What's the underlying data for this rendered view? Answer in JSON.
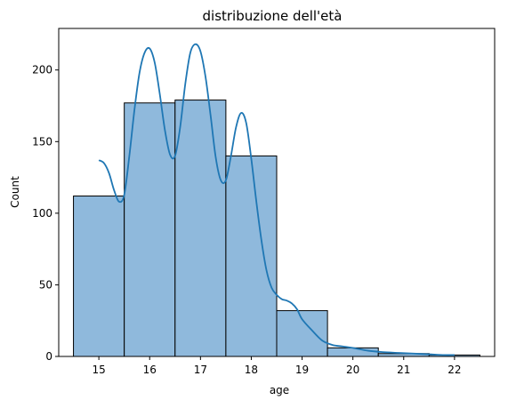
{
  "chart_data": {
    "type": "bar",
    "title": "distribuzione dell'età",
    "xlabel": "age",
    "ylabel": "Count",
    "categories": [
      "15",
      "16",
      "17",
      "18",
      "19",
      "20",
      "21",
      "22"
    ],
    "x": [
      15,
      16,
      17,
      18,
      19,
      20,
      21,
      22
    ],
    "values": [
      112,
      177,
      179,
      140,
      32,
      6,
      2,
      1
    ],
    "xlim": [
      14.21,
      22.79
    ],
    "ylim": [
      0,
      229
    ],
    "xticks": [
      15,
      16,
      17,
      18,
      19,
      20,
      21,
      22
    ],
    "yticks": [
      0,
      50,
      100,
      150,
      200
    ],
    "grid": false,
    "legend": "none",
    "kde": {
      "x": [
        15.0,
        15.1,
        15.2,
        15.3,
        15.4,
        15.5,
        15.6,
        15.7,
        15.8,
        15.9,
        16.0,
        16.1,
        16.2,
        16.3,
        16.4,
        16.5,
        16.6,
        16.7,
        16.8,
        16.9,
        17.0,
        17.1,
        17.2,
        17.3,
        17.4,
        17.5,
        17.6,
        17.7,
        17.8,
        17.9,
        18.0,
        18.1,
        18.2,
        18.3,
        18.4,
        18.5,
        18.6,
        18.7,
        18.8,
        18.9,
        19.0,
        19.2,
        19.4,
        19.6,
        19.8,
        20.0,
        20.3,
        20.6,
        20.9,
        21.2,
        21.5,
        21.8,
        22.0
      ],
      "y": [
        137,
        135,
        128,
        116,
        108,
        113,
        140,
        172,
        198,
        212,
        215,
        205,
        183,
        158,
        141,
        140,
        160,
        190,
        212,
        218,
        213,
        195,
        168,
        139,
        123,
        123,
        140,
        160,
        170,
        163,
        138,
        108,
        81,
        60,
        48,
        43,
        40,
        39,
        37,
        33,
        26,
        18,
        11,
        8,
        7,
        6,
        4,
        3,
        2.5,
        2,
        1.5,
        1,
        1
      ]
    },
    "colors": {
      "bar_fill": "#8fb9dc",
      "bar_edge": "#000000",
      "kde_line": "#1f77b4"
    }
  }
}
